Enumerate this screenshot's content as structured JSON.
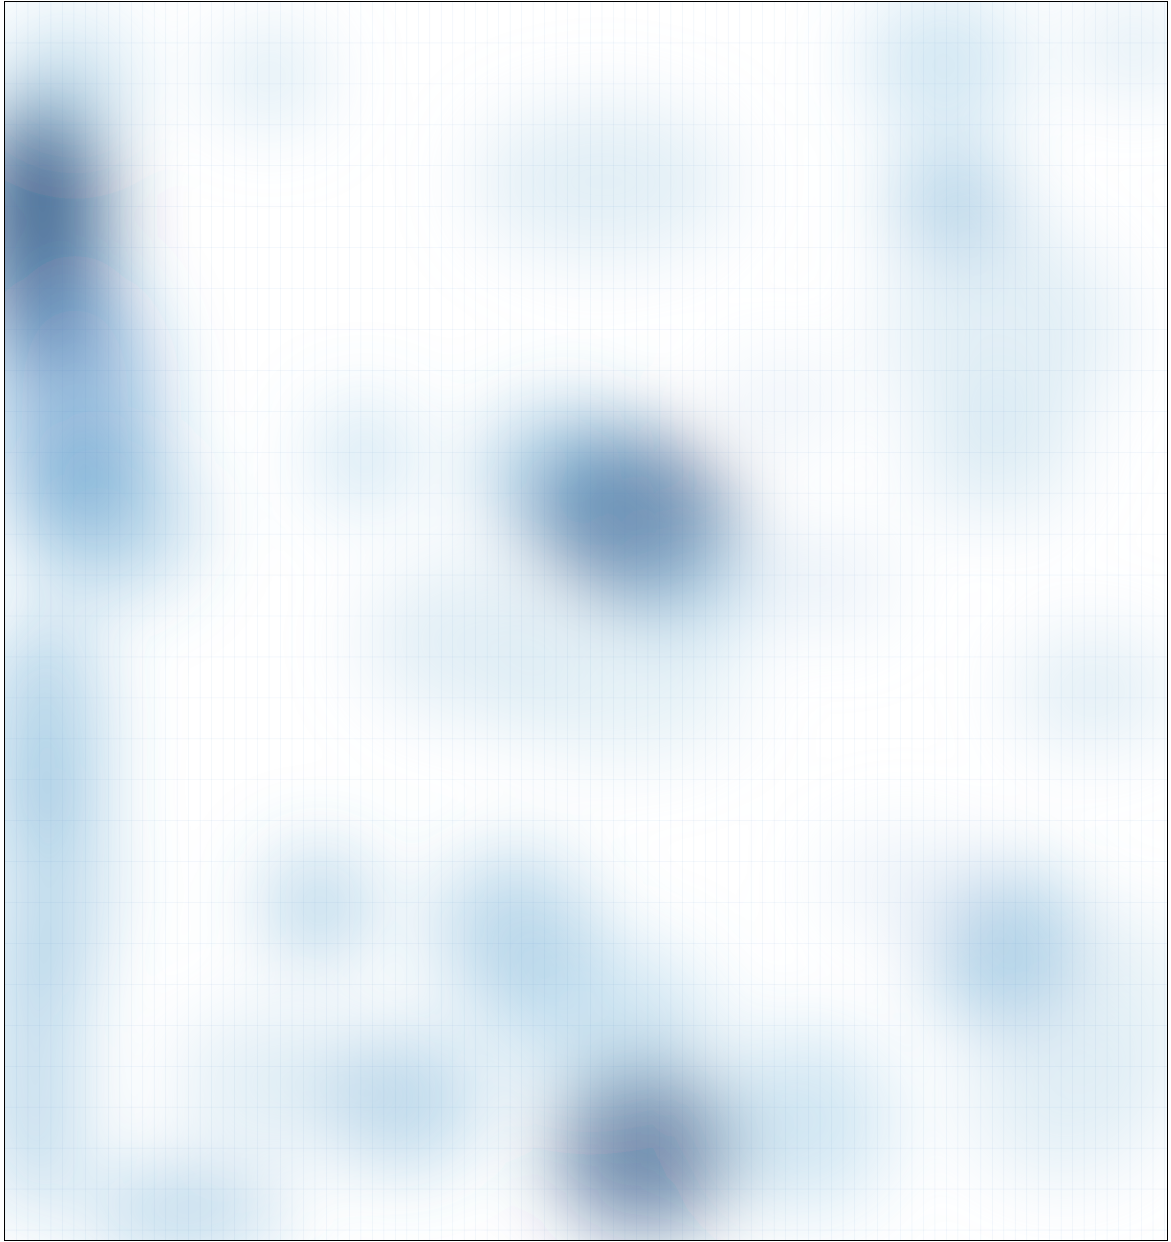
{
  "chart_data": {
    "type": "heatmap",
    "title": "",
    "xlabel": "",
    "ylabel": "",
    "grid": true,
    "legend": "none",
    "colormap": {
      "low": "#ffffff",
      "high": "#08306b",
      "stops": [
        "#ffffff",
        "#deebf7",
        "#9ecae1",
        "#4292c6",
        "#08306b"
      ],
      "grid_line_color": "#4a8cc4"
    },
    "description_hotspots": [
      {
        "name": "left-band-upper",
        "x": 0.03,
        "y": 0.19,
        "intensity": 0.85
      },
      {
        "name": "left-band-mid",
        "x": 0.05,
        "y": 0.33,
        "intensity": 0.65
      },
      {
        "name": "left-band-lower",
        "x": 0.07,
        "y": 0.44,
        "intensity": 0.45
      },
      {
        "name": "left-band-bottom",
        "x": 0.03,
        "y": 0.62,
        "intensity": 0.45
      },
      {
        "name": "left-band-base",
        "x": 0.03,
        "y": 0.86,
        "intensity": 0.4
      },
      {
        "name": "center-blob",
        "x": 0.55,
        "y": 0.42,
        "intensity": 0.75
      },
      {
        "name": "bottom-center-blob",
        "x": 0.54,
        "y": 0.93,
        "intensity": 0.85
      },
      {
        "name": "right-top",
        "x": 0.81,
        "y": 0.16,
        "intensity": 0.35
      },
      {
        "name": "right-mid",
        "x": 0.85,
        "y": 0.77,
        "intensity": 0.4
      }
    ]
  }
}
